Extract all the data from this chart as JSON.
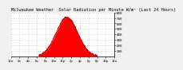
{
  "title": "Milwaukee Weather  Solar Radiation per Minute W/m² (Last 24 Hours)",
  "title_fontsize": 3.8,
  "bg_color": "#f0f0f0",
  "plot_bg_color": "#ffffff",
  "grid_color": "#bbbbbb",
  "fill_color": "#ff0000",
  "line_color": "#cc0000",
  "ylim": [
    0,
    800
  ],
  "yticks": [
    100,
    200,
    300,
    400,
    500,
    600,
    700,
    800
  ],
  "ylabel_fontsize": 3.0,
  "xlabel_fontsize": 2.8,
  "num_points": 1440,
  "peak_hour": 13.0,
  "peak_value": 710,
  "sigma_hours": 2.5,
  "daylight_start": 6.5,
  "daylight_end": 20.0,
  "xtick_hours": [
    0,
    2,
    4,
    6,
    8,
    10,
    12,
    14,
    16,
    18,
    20,
    22,
    24
  ],
  "xtick_labels": [
    "12a",
    "2a",
    "4a",
    "6a",
    "8a",
    "10a",
    "12p",
    "2p",
    "4p",
    "6p",
    "8p",
    "10p",
    "12a"
  ]
}
